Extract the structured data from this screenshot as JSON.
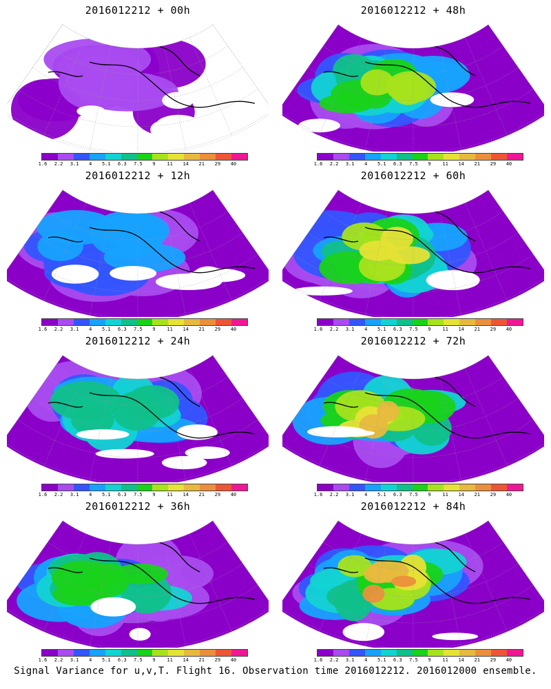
{
  "colorscale": {
    "colors": [
      "#8b00c9",
      "#a94bf0",
      "#3355ff",
      "#17a2ff",
      "#12d3d3",
      "#10c08a",
      "#19d21a",
      "#a7e31c",
      "#e6e236",
      "#e8b93e",
      "#ec8f3c",
      "#ee5536",
      "#f01795"
    ],
    "ticks": [
      "1.6",
      "2.2",
      "3.1",
      "4",
      "5.1",
      "6.3",
      "7.5",
      "9",
      "11",
      "14",
      "21",
      "29",
      "40"
    ]
  },
  "panels": [
    {
      "title": "2016012212 + 00h",
      "lead_hours": 0,
      "intensity": 0.12
    },
    {
      "title": "2016012212 + 48h",
      "lead_hours": 48,
      "intensity": 0.62
    },
    {
      "title": "2016012212 + 12h",
      "lead_hours": 12,
      "intensity": 0.28
    },
    {
      "title": "2016012212 + 60h",
      "lead_hours": 60,
      "intensity": 0.7
    },
    {
      "title": "2016012212 + 24h",
      "lead_hours": 24,
      "intensity": 0.4
    },
    {
      "title": "2016012212 + 72h",
      "lead_hours": 72,
      "intensity": 0.78
    },
    {
      "title": "2016012212 + 36h",
      "lead_hours": 36,
      "intensity": 0.52
    },
    {
      "title": "2016012212 + 84h",
      "lead_hours": 84,
      "intensity": 0.85
    }
  ],
  "footer": "Signal Variance for u,v,T. Flight 16. Observation time 2016012212. 2016012000 ensemble."
}
